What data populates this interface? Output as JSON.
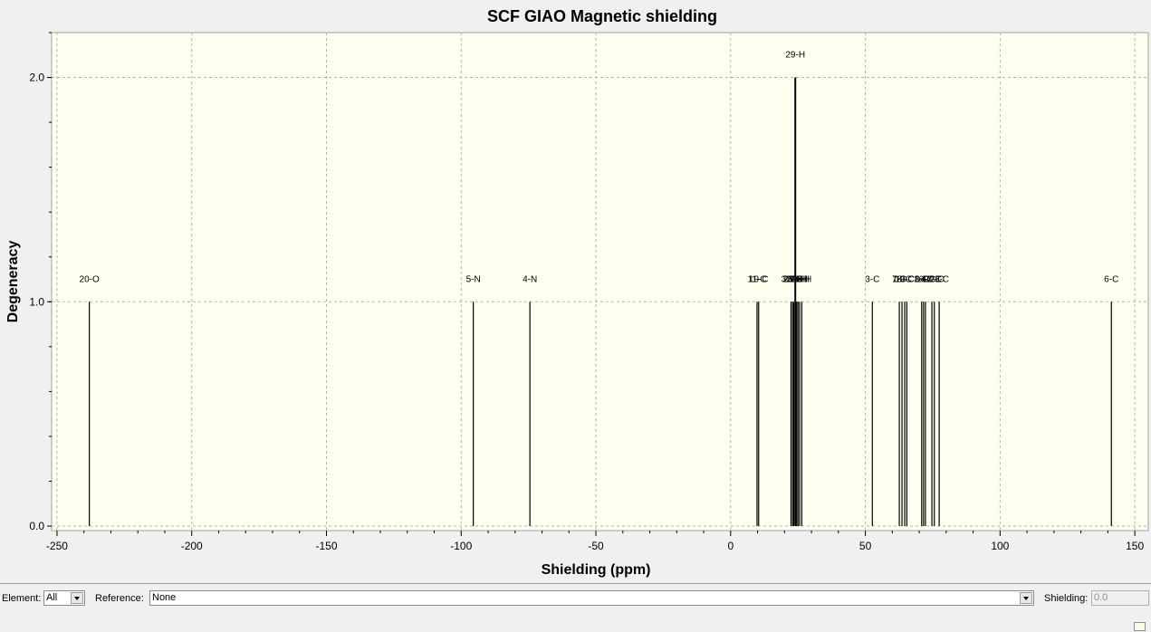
{
  "chart_data": {
    "type": "bar",
    "title": "SCF GIAO Magnetic shielding",
    "xlabel": "Shielding (ppm)",
    "ylabel": "Degeneracy",
    "xlim": [
      -252,
      155
    ],
    "ylim": [
      -0.02,
      2.2
    ],
    "xticks": [
      -250,
      -200,
      -150,
      -100,
      -50,
      0,
      50,
      100,
      150
    ],
    "yticks": [
      0.0,
      1.0,
      2.0
    ],
    "ytick_labels": [
      "0.0",
      "1.0",
      "2.0"
    ],
    "grid": true,
    "peaks": [
      {
        "label": "20-O",
        "x": -238.0,
        "y": 1
      },
      {
        "label": "5-N",
        "x": -95.5,
        "y": 1
      },
      {
        "label": "4-N",
        "x": -74.5,
        "y": 1
      },
      {
        "label": "11-C",
        "x": 9.8,
        "y": 1
      },
      {
        "label": "19-C",
        "x": 10.4,
        "y": 1
      },
      {
        "label": "32-H",
        "x": 22.4,
        "y": 1
      },
      {
        "label": "26-H",
        "x": 23.0,
        "y": 1
      },
      {
        "label": "27-H",
        "x": 23.4,
        "y": 1
      },
      {
        "label": "29-H",
        "x": 24.0,
        "y": 2
      },
      {
        "label": "30-H",
        "x": 24.5,
        "y": 1
      },
      {
        "label": "31-H",
        "x": 25.0,
        "y": 1
      },
      {
        "label": "24-H",
        "x": 25.6,
        "y": 1
      },
      {
        "label": "25-H",
        "x": 26.4,
        "y": 1
      },
      {
        "label": "3-C",
        "x": 52.6,
        "y": 1
      },
      {
        "label": "7-C",
        "x": 62.6,
        "y": 1
      },
      {
        "label": "18-C",
        "x": 63.6,
        "y": 1
      },
      {
        "label": "10-C",
        "x": 64.6,
        "y": 1
      },
      {
        "label": "9-C",
        "x": 65.4,
        "y": 1
      },
      {
        "label": "8-C",
        "x": 70.9,
        "y": 1
      },
      {
        "label": "16-C",
        "x": 71.6,
        "y": 1
      },
      {
        "label": "14-C",
        "x": 72.3,
        "y": 1
      },
      {
        "label": "12-C",
        "x": 74.7,
        "y": 1
      },
      {
        "label": "22-C",
        "x": 75.6,
        "y": 1
      },
      {
        "label": "23-C",
        "x": 77.4,
        "y": 1
      },
      {
        "label": "6-C",
        "x": 141.3,
        "y": 1
      }
    ]
  },
  "colors": {
    "plot_background": "#fffff0",
    "grid": "#b4b4b4",
    "peak_line": "#000000"
  },
  "toolbar": {
    "element_label": "Element:",
    "element_value": "All",
    "reference_label": "Reference:",
    "reference_value": "None",
    "shielding_label": "Shielding:",
    "shielding_value": "0.0"
  },
  "icons": {
    "dropdown": "chevron-down-icon",
    "corner": "resize-grip-icon"
  }
}
